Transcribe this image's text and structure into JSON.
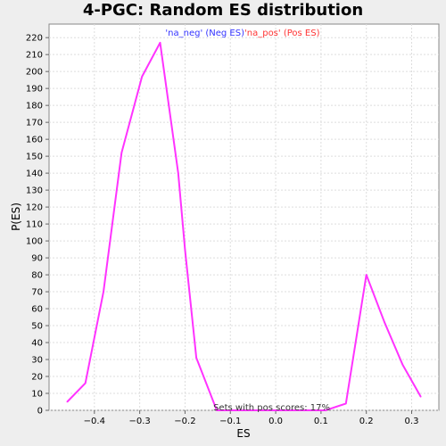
{
  "chart_data": {
    "type": "line",
    "title": "4-PGC: Random ES distribution",
    "xlabel": "ES",
    "ylabel": "P(ES)",
    "xlim": [
      -0.5,
      0.36
    ],
    "ylim": [
      0,
      228
    ],
    "x_ticks": [
      -0.4,
      -0.3,
      -0.2,
      -0.1,
      0.0,
      0.1,
      0.2,
      0.3
    ],
    "x_tick_labels": [
      "−0.4",
      "−0.3",
      "−0.2",
      "−0.1",
      "0.0",
      "0.1",
      "0.2",
      "0.3"
    ],
    "y_ticks": [
      0,
      10,
      20,
      30,
      40,
      50,
      60,
      70,
      80,
      90,
      100,
      110,
      120,
      130,
      140,
      150,
      160,
      170,
      180,
      190,
      200,
      210,
      220
    ],
    "grid": true,
    "legend": [
      {
        "label": "'na_neg' (Neg ES)",
        "color": "#3333ff"
      },
      {
        "label": "'na_pos' (Pos ES)",
        "color": "#ff3333"
      }
    ],
    "annotation": "Sets with pos scores: 17%",
    "series": [
      {
        "color": "#ff33ff",
        "points": [
          [
            -0.46,
            5
          ],
          [
            -0.42,
            16
          ],
          [
            -0.38,
            70
          ],
          [
            -0.34,
            152
          ],
          [
            -0.295,
            197
          ],
          [
            -0.255,
            217
          ],
          [
            -0.215,
            140
          ],
          [
            -0.2,
            95
          ],
          [
            -0.175,
            31
          ],
          [
            -0.13,
            0
          ],
          [
            -0.09,
            0
          ],
          [
            -0.05,
            0
          ],
          [
            0.0,
            0
          ],
          [
            0.05,
            0
          ],
          [
            0.11,
            0
          ],
          [
            0.155,
            4
          ],
          [
            0.2,
            80
          ],
          [
            0.24,
            52
          ],
          [
            0.28,
            27
          ],
          [
            0.32,
            8
          ]
        ]
      }
    ]
  }
}
